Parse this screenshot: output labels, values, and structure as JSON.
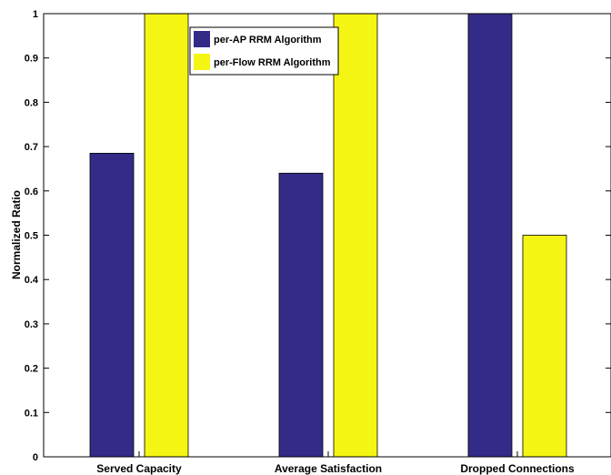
{
  "chart_data": {
    "type": "bar",
    "categories": [
      "Served Capacity",
      "Average Satisfaction",
      "Dropped Connections"
    ],
    "series": [
      {
        "name": "per-AP RRM Algorithm",
        "values": [
          0.685,
          0.64,
          1.0
        ],
        "color": "#332B87"
      },
      {
        "name": "per-Flow RRM Algorithm",
        "values": [
          1.0,
          1.0,
          0.5
        ],
        "color": "#F5F514"
      }
    ],
    "ylabel": "Normalized Ratio",
    "xlabel": "",
    "ylim": [
      0,
      1
    ],
    "yticks": [
      "0",
      "0.1",
      "0.2",
      "0.3",
      "0.4",
      "0.5",
      "0.6",
      "0.7",
      "0.8",
      "0.9",
      "1"
    ],
    "grid": false,
    "legend_position": "top-center"
  }
}
